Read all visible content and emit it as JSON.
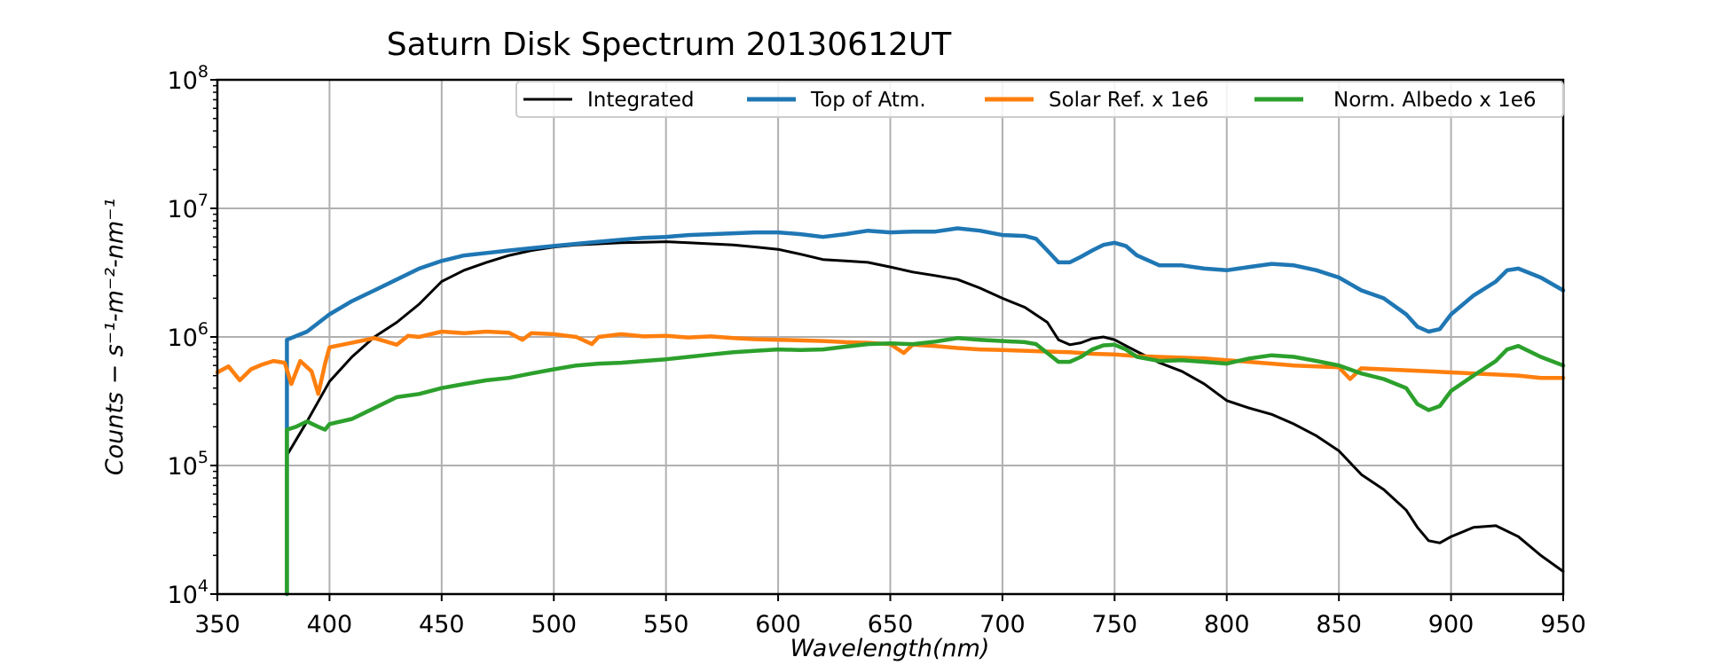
{
  "chart_data": {
    "type": "line",
    "title": "Saturn Disk Spectrum 20130612UT",
    "xlabel": "Wavelength(nm)",
    "ylabel": "Counts − s⁻¹-m⁻²-nm⁻¹",
    "xlim": [
      350,
      950
    ],
    "ylim": [
      10000,
      100000000
    ],
    "yscale": "log",
    "grid": true,
    "legend_position": "top-right",
    "x_ticks": [
      "350",
      "400",
      "450",
      "500",
      "550",
      "600",
      "650",
      "700",
      "750",
      "800",
      "850",
      "900",
      "950"
    ],
    "y_ticks": [
      {
        "base": "10",
        "exp": "4"
      },
      {
        "base": "10",
        "exp": "5"
      },
      {
        "base": "10",
        "exp": "6"
      },
      {
        "base": "10",
        "exp": "7"
      },
      {
        "base": "10",
        "exp": "8"
      }
    ],
    "series": [
      {
        "name": "Integrated",
        "color": "#000000",
        "points": [
          [
            381,
            120000
          ],
          [
            390,
            220000
          ],
          [
            400,
            450000
          ],
          [
            410,
            700000
          ],
          [
            420,
            1000000
          ],
          [
            430,
            1300000
          ],
          [
            440,
            1800000
          ],
          [
            450,
            2700000
          ],
          [
            460,
            3300000
          ],
          [
            470,
            3800000
          ],
          [
            480,
            4300000
          ],
          [
            490,
            4700000
          ],
          [
            500,
            5000000
          ],
          [
            510,
            5200000
          ],
          [
            520,
            5300000
          ],
          [
            530,
            5400000
          ],
          [
            540,
            5450000
          ],
          [
            550,
            5500000
          ],
          [
            560,
            5400000
          ],
          [
            570,
            5300000
          ],
          [
            580,
            5200000
          ],
          [
            590,
            5000000
          ],
          [
            600,
            4800000
          ],
          [
            610,
            4400000
          ],
          [
            620,
            4000000
          ],
          [
            630,
            3900000
          ],
          [
            640,
            3800000
          ],
          [
            650,
            3500000
          ],
          [
            660,
            3200000
          ],
          [
            670,
            3000000
          ],
          [
            680,
            2800000
          ],
          [
            690,
            2400000
          ],
          [
            700,
            2000000
          ],
          [
            710,
            1700000
          ],
          [
            720,
            1300000
          ],
          [
            725,
            950000
          ],
          [
            730,
            870000
          ],
          [
            735,
            900000
          ],
          [
            740,
            970000
          ],
          [
            745,
            1000000
          ],
          [
            750,
            950000
          ],
          [
            760,
            770000
          ],
          [
            770,
            630000
          ],
          [
            780,
            540000
          ],
          [
            790,
            430000
          ],
          [
            800,
            320000
          ],
          [
            810,
            280000
          ],
          [
            820,
            250000
          ],
          [
            830,
            210000
          ],
          [
            840,
            170000
          ],
          [
            850,
            130000
          ],
          [
            860,
            85000
          ],
          [
            870,
            65000
          ],
          [
            880,
            45000
          ],
          [
            885,
            33000
          ],
          [
            890,
            26000
          ],
          [
            895,
            25000
          ],
          [
            900,
            28000
          ],
          [
            910,
            33000
          ],
          [
            920,
            34000
          ],
          [
            930,
            28000
          ],
          [
            940,
            20000
          ],
          [
            950,
            15000
          ]
        ]
      },
      {
        "name": "Top of Atm.",
        "color": "#1f77b4",
        "points": [
          [
            381,
            10000
          ],
          [
            381,
            950000
          ],
          [
            390,
            1100000
          ],
          [
            400,
            1500000
          ],
          [
            410,
            1900000
          ],
          [
            420,
            2300000
          ],
          [
            430,
            2800000
          ],
          [
            440,
            3400000
          ],
          [
            450,
            3900000
          ],
          [
            460,
            4300000
          ],
          [
            470,
            4500000
          ],
          [
            480,
            4700000
          ],
          [
            490,
            4900000
          ],
          [
            500,
            5100000
          ],
          [
            510,
            5300000
          ],
          [
            520,
            5500000
          ],
          [
            530,
            5700000
          ],
          [
            540,
            5900000
          ],
          [
            550,
            6000000
          ],
          [
            560,
            6200000
          ],
          [
            570,
            6300000
          ],
          [
            580,
            6400000
          ],
          [
            590,
            6500000
          ],
          [
            600,
            6500000
          ],
          [
            610,
            6300000
          ],
          [
            620,
            6000000
          ],
          [
            630,
            6300000
          ],
          [
            640,
            6700000
          ],
          [
            650,
            6500000
          ],
          [
            660,
            6600000
          ],
          [
            670,
            6600000
          ],
          [
            680,
            7000000
          ],
          [
            690,
            6700000
          ],
          [
            700,
            6200000
          ],
          [
            710,
            6100000
          ],
          [
            715,
            5800000
          ],
          [
            720,
            4700000
          ],
          [
            725,
            3800000
          ],
          [
            730,
            3800000
          ],
          [
            735,
            4200000
          ],
          [
            740,
            4700000
          ],
          [
            745,
            5200000
          ],
          [
            750,
            5400000
          ],
          [
            755,
            5100000
          ],
          [
            760,
            4300000
          ],
          [
            770,
            3600000
          ],
          [
            780,
            3600000
          ],
          [
            790,
            3400000
          ],
          [
            800,
            3300000
          ],
          [
            810,
            3500000
          ],
          [
            820,
            3700000
          ],
          [
            830,
            3600000
          ],
          [
            840,
            3300000
          ],
          [
            850,
            2900000
          ],
          [
            860,
            2300000
          ],
          [
            870,
            2000000
          ],
          [
            880,
            1500000
          ],
          [
            885,
            1200000
          ],
          [
            890,
            1100000
          ],
          [
            895,
            1150000
          ],
          [
            900,
            1500000
          ],
          [
            910,
            2100000
          ],
          [
            920,
            2700000
          ],
          [
            925,
            3300000
          ],
          [
            930,
            3400000
          ],
          [
            940,
            2900000
          ],
          [
            950,
            2300000
          ]
        ]
      },
      {
        "name": "Solar Ref. x 1e6",
        "color": "#ff7f0e",
        "points": [
          [
            350,
            530000
          ],
          [
            355,
            590000
          ],
          [
            360,
            460000
          ],
          [
            365,
            560000
          ],
          [
            370,
            610000
          ],
          [
            375,
            650000
          ],
          [
            380,
            630000
          ],
          [
            383,
            430000
          ],
          [
            387,
            650000
          ],
          [
            392,
            540000
          ],
          [
            395,
            360000
          ],
          [
            398,
            620000
          ],
          [
            400,
            830000
          ],
          [
            410,
            900000
          ],
          [
            420,
            980000
          ],
          [
            430,
            870000
          ],
          [
            435,
            1020000
          ],
          [
            440,
            1000000
          ],
          [
            450,
            1100000
          ],
          [
            460,
            1070000
          ],
          [
            470,
            1100000
          ],
          [
            480,
            1080000
          ],
          [
            486,
            950000
          ],
          [
            490,
            1070000
          ],
          [
            500,
            1050000
          ],
          [
            510,
            1000000
          ],
          [
            517,
            880000
          ],
          [
            520,
            1000000
          ],
          [
            530,
            1050000
          ],
          [
            540,
            1010000
          ],
          [
            550,
            1020000
          ],
          [
            560,
            990000
          ],
          [
            570,
            1010000
          ],
          [
            580,
            980000
          ],
          [
            590,
            960000
          ],
          [
            600,
            950000
          ],
          [
            610,
            940000
          ],
          [
            620,
            930000
          ],
          [
            630,
            910000
          ],
          [
            640,
            900000
          ],
          [
            650,
            880000
          ],
          [
            656,
            750000
          ],
          [
            660,
            870000
          ],
          [
            670,
            850000
          ],
          [
            680,
            820000
          ],
          [
            690,
            800000
          ],
          [
            700,
            790000
          ],
          [
            710,
            780000
          ],
          [
            720,
            770000
          ],
          [
            730,
            760000
          ],
          [
            740,
            740000
          ],
          [
            750,
            730000
          ],
          [
            760,
            710000
          ],
          [
            770,
            700000
          ],
          [
            780,
            690000
          ],
          [
            790,
            680000
          ],
          [
            800,
            660000
          ],
          [
            810,
            640000
          ],
          [
            820,
            620000
          ],
          [
            830,
            600000
          ],
          [
            840,
            590000
          ],
          [
            850,
            580000
          ],
          [
            855,
            470000
          ],
          [
            860,
            570000
          ],
          [
            870,
            560000
          ],
          [
            880,
            550000
          ],
          [
            890,
            540000
          ],
          [
            900,
            530000
          ],
          [
            910,
            520000
          ],
          [
            920,
            510000
          ],
          [
            930,
            500000
          ],
          [
            940,
            480000
          ],
          [
            950,
            480000
          ]
        ]
      },
      {
        "name": "Norm. Albedo x 1e6",
        "color": "#2ca02c",
        "points": [
          [
            381,
            10000
          ],
          [
            381,
            190000
          ],
          [
            385,
            200000
          ],
          [
            390,
            220000
          ],
          [
            395,
            200000
          ],
          [
            398,
            190000
          ],
          [
            400,
            210000
          ],
          [
            410,
            230000
          ],
          [
            420,
            280000
          ],
          [
            430,
            340000
          ],
          [
            440,
            360000
          ],
          [
            450,
            400000
          ],
          [
            460,
            430000
          ],
          [
            470,
            460000
          ],
          [
            480,
            480000
          ],
          [
            490,
            520000
          ],
          [
            500,
            560000
          ],
          [
            510,
            600000
          ],
          [
            520,
            620000
          ],
          [
            530,
            630000
          ],
          [
            540,
            650000
          ],
          [
            550,
            670000
          ],
          [
            560,
            700000
          ],
          [
            570,
            730000
          ],
          [
            580,
            760000
          ],
          [
            590,
            780000
          ],
          [
            600,
            800000
          ],
          [
            610,
            790000
          ],
          [
            620,
            800000
          ],
          [
            630,
            840000
          ],
          [
            640,
            880000
          ],
          [
            650,
            890000
          ],
          [
            660,
            880000
          ],
          [
            670,
            920000
          ],
          [
            680,
            980000
          ],
          [
            690,
            950000
          ],
          [
            700,
            930000
          ],
          [
            710,
            910000
          ],
          [
            715,
            880000
          ],
          [
            720,
            750000
          ],
          [
            725,
            640000
          ],
          [
            730,
            640000
          ],
          [
            735,
            700000
          ],
          [
            740,
            800000
          ],
          [
            745,
            860000
          ],
          [
            750,
            870000
          ],
          [
            755,
            800000
          ],
          [
            760,
            700000
          ],
          [
            770,
            650000
          ],
          [
            780,
            660000
          ],
          [
            790,
            640000
          ],
          [
            800,
            620000
          ],
          [
            810,
            680000
          ],
          [
            820,
            720000
          ],
          [
            830,
            700000
          ],
          [
            840,
            650000
          ],
          [
            850,
            600000
          ],
          [
            860,
            520000
          ],
          [
            870,
            470000
          ],
          [
            880,
            400000
          ],
          [
            885,
            300000
          ],
          [
            890,
            270000
          ],
          [
            895,
            290000
          ],
          [
            900,
            380000
          ],
          [
            910,
            500000
          ],
          [
            920,
            650000
          ],
          [
            925,
            800000
          ],
          [
            930,
            850000
          ],
          [
            940,
            700000
          ],
          [
            950,
            600000
          ]
        ]
      }
    ]
  }
}
